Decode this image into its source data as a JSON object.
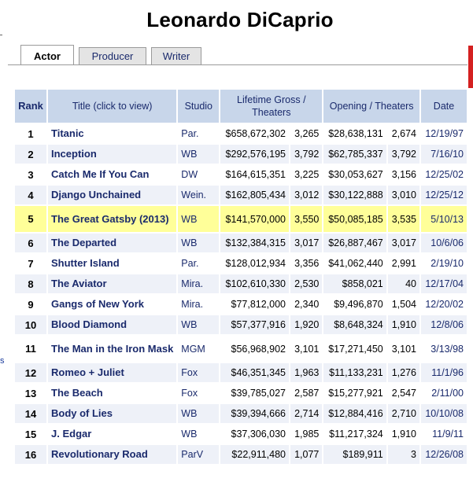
{
  "page": {
    "title": "Leonardo DiCaprio"
  },
  "tabs": [
    {
      "label": "Actor",
      "active": true
    },
    {
      "label": "Producer",
      "active": false
    },
    {
      "label": "Writer",
      "active": false
    }
  ],
  "columns": {
    "rank": "Rank",
    "title": "Title (click to view)",
    "studio": "Studio",
    "gross": "Lifetime Gross / Theaters",
    "opening": "Opening / Theaters",
    "date": "Date"
  },
  "rows": [
    {
      "rank": "1",
      "title": "Titanic",
      "studio": "Par.",
      "gross": "$658,672,302",
      "gross_theaters": "3,265",
      "opening": "$28,638,131",
      "opening_theaters": "2,674",
      "date": "12/19/97"
    },
    {
      "rank": "2",
      "title": "Inception",
      "studio": "WB",
      "gross": "$292,576,195",
      "gross_theaters": "3,792",
      "opening": "$62,785,337",
      "opening_theaters": "3,792",
      "date": "7/16/10"
    },
    {
      "rank": "3",
      "title": "Catch Me If You Can",
      "studio": "DW",
      "gross": "$164,615,351",
      "gross_theaters": "3,225",
      "opening": "$30,053,627",
      "opening_theaters": "3,156",
      "date": "12/25/02"
    },
    {
      "rank": "4",
      "title": "Django Unchained",
      "studio": "Wein.",
      "gross": "$162,805,434",
      "gross_theaters": "3,012",
      "opening": "$30,122,888",
      "opening_theaters": "3,010",
      "date": "12/25/12"
    },
    {
      "rank": "5",
      "title": "The Great Gatsby (2013)",
      "studio": "WB",
      "gross": "$141,570,000",
      "gross_theaters": "3,550",
      "opening": "$50,085,185",
      "opening_theaters": "3,535",
      "date": "5/10/13",
      "highlight": true
    },
    {
      "rank": "6",
      "title": "The Departed",
      "studio": "WB",
      "gross": "$132,384,315",
      "gross_theaters": "3,017",
      "opening": "$26,887,467",
      "opening_theaters": "3,017",
      "date": "10/6/06"
    },
    {
      "rank": "7",
      "title": "Shutter Island",
      "studio": "Par.",
      "gross": "$128,012,934",
      "gross_theaters": "3,356",
      "opening": "$41,062,440",
      "opening_theaters": "2,991",
      "date": "2/19/10"
    },
    {
      "rank": "8",
      "title": "The Aviator",
      "studio": "Mira.",
      "gross": "$102,610,330",
      "gross_theaters": "2,530",
      "opening": "$858,021",
      "opening_theaters": "40",
      "date": "12/17/04"
    },
    {
      "rank": "9",
      "title": "Gangs of New York",
      "studio": "Mira.",
      "gross": "$77,812,000",
      "gross_theaters": "2,340",
      "opening": "$9,496,870",
      "opening_theaters": "1,504",
      "date": "12/20/02"
    },
    {
      "rank": "10",
      "title": "Blood Diamond",
      "studio": "WB",
      "gross": "$57,377,916",
      "gross_theaters": "1,920",
      "opening": "$8,648,324",
      "opening_theaters": "1,910",
      "date": "12/8/06"
    },
    {
      "rank": "11",
      "title": "The Man in the Iron Mask",
      "studio": "MGM",
      "gross": "$56,968,902",
      "gross_theaters": "3,101",
      "opening": "$17,271,450",
      "opening_theaters": "3,101",
      "date": "3/13/98"
    },
    {
      "rank": "12",
      "title": "Romeo + Juliet",
      "studio": "Fox",
      "gross": "$46,351,345",
      "gross_theaters": "1,963",
      "opening": "$11,133,231",
      "opening_theaters": "1,276",
      "date": "11/1/96"
    },
    {
      "rank": "13",
      "title": "The Beach",
      "studio": "Fox",
      "gross": "$39,785,027",
      "gross_theaters": "2,587",
      "opening": "$15,277,921",
      "opening_theaters": "2,547",
      "date": "2/11/00"
    },
    {
      "rank": "14",
      "title": "Body of Lies",
      "studio": "WB",
      "gross": "$39,394,666",
      "gross_theaters": "2,714",
      "opening": "$12,884,416",
      "opening_theaters": "2,710",
      "date": "10/10/08"
    },
    {
      "rank": "15",
      "title": "J. Edgar",
      "studio": "WB",
      "gross": "$37,306,030",
      "gross_theaters": "1,985",
      "opening": "$11,217,324",
      "opening_theaters": "1,910",
      "date": "11/9/11"
    },
    {
      "rank": "16",
      "title": "Revolutionary Road",
      "studio": "ParV",
      "gross": "$22,911,480",
      "gross_theaters": "1,077",
      "opening": "$189,911",
      "opening_theaters": "3",
      "date": "12/26/08"
    }
  ],
  "side": {
    "fragment": "s"
  },
  "colors": {
    "header_bg": "#c8d6ea",
    "row_alt": "#eef1f8",
    "highlight": "#ffff99",
    "link": "#1a2a6c",
    "accent_bar": "#d42020"
  }
}
